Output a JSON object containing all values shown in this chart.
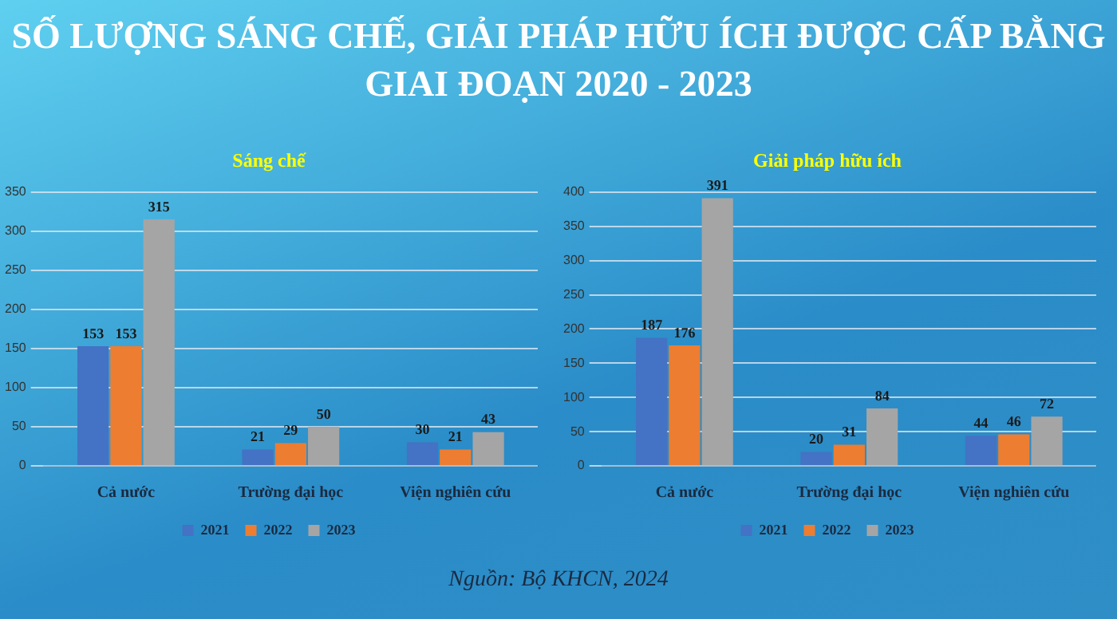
{
  "chart_data": [
    {
      "type": "other",
      "title": "SỐ LƯỢNG SÁNG CHẾ, GIẢI PHÁP HỮU ÍCH ĐƯỢC CẤP BẰNG GIAI ĐOẠN 2020 - 2023",
      "annotations": [
        "Nguồn: Bộ KHCN, 2024"
      ]
    },
    {
      "type": "bar",
      "title": "Sáng chế",
      "categories": [
        "Cả nước",
        "Trường đại học",
        "Viện nghiên cứu"
      ],
      "series": [
        {
          "name": "2021",
          "color": "#4472c4",
          "values": [
            153,
            21,
            30
          ]
        },
        {
          "name": "2022",
          "color": "#ed7d31",
          "values": [
            153,
            29,
            21
          ]
        },
        {
          "name": "2023",
          "color": "#a5a5a5",
          "values": [
            315,
            50,
            43
          ]
        }
      ],
      "ylim": [
        0,
        350
      ],
      "yticks": [
        0,
        50,
        100,
        150,
        200,
        250,
        300,
        350
      ],
      "grid": "y",
      "legend": "bottom",
      "data_labels": true
    },
    {
      "type": "bar",
      "title": "Giải pháp hữu ích",
      "categories": [
        "Cả nước",
        "Trường đại học",
        "Viện nghiên cứu"
      ],
      "series": [
        {
          "name": "2021",
          "color": "#4472c4",
          "values": [
            187,
            20,
            44
          ]
        },
        {
          "name": "2022",
          "color": "#ed7d31",
          "values": [
            176,
            31,
            46
          ]
        },
        {
          "name": "2023",
          "color": "#a5a5a5",
          "values": [
            391,
            84,
            72
          ]
        }
      ],
      "ylim": [
        0,
        400
      ],
      "yticks": [
        0,
        50,
        100,
        150,
        200,
        250,
        300,
        350,
        400
      ],
      "grid": "y",
      "legend": "bottom",
      "data_labels": true
    }
  ]
}
